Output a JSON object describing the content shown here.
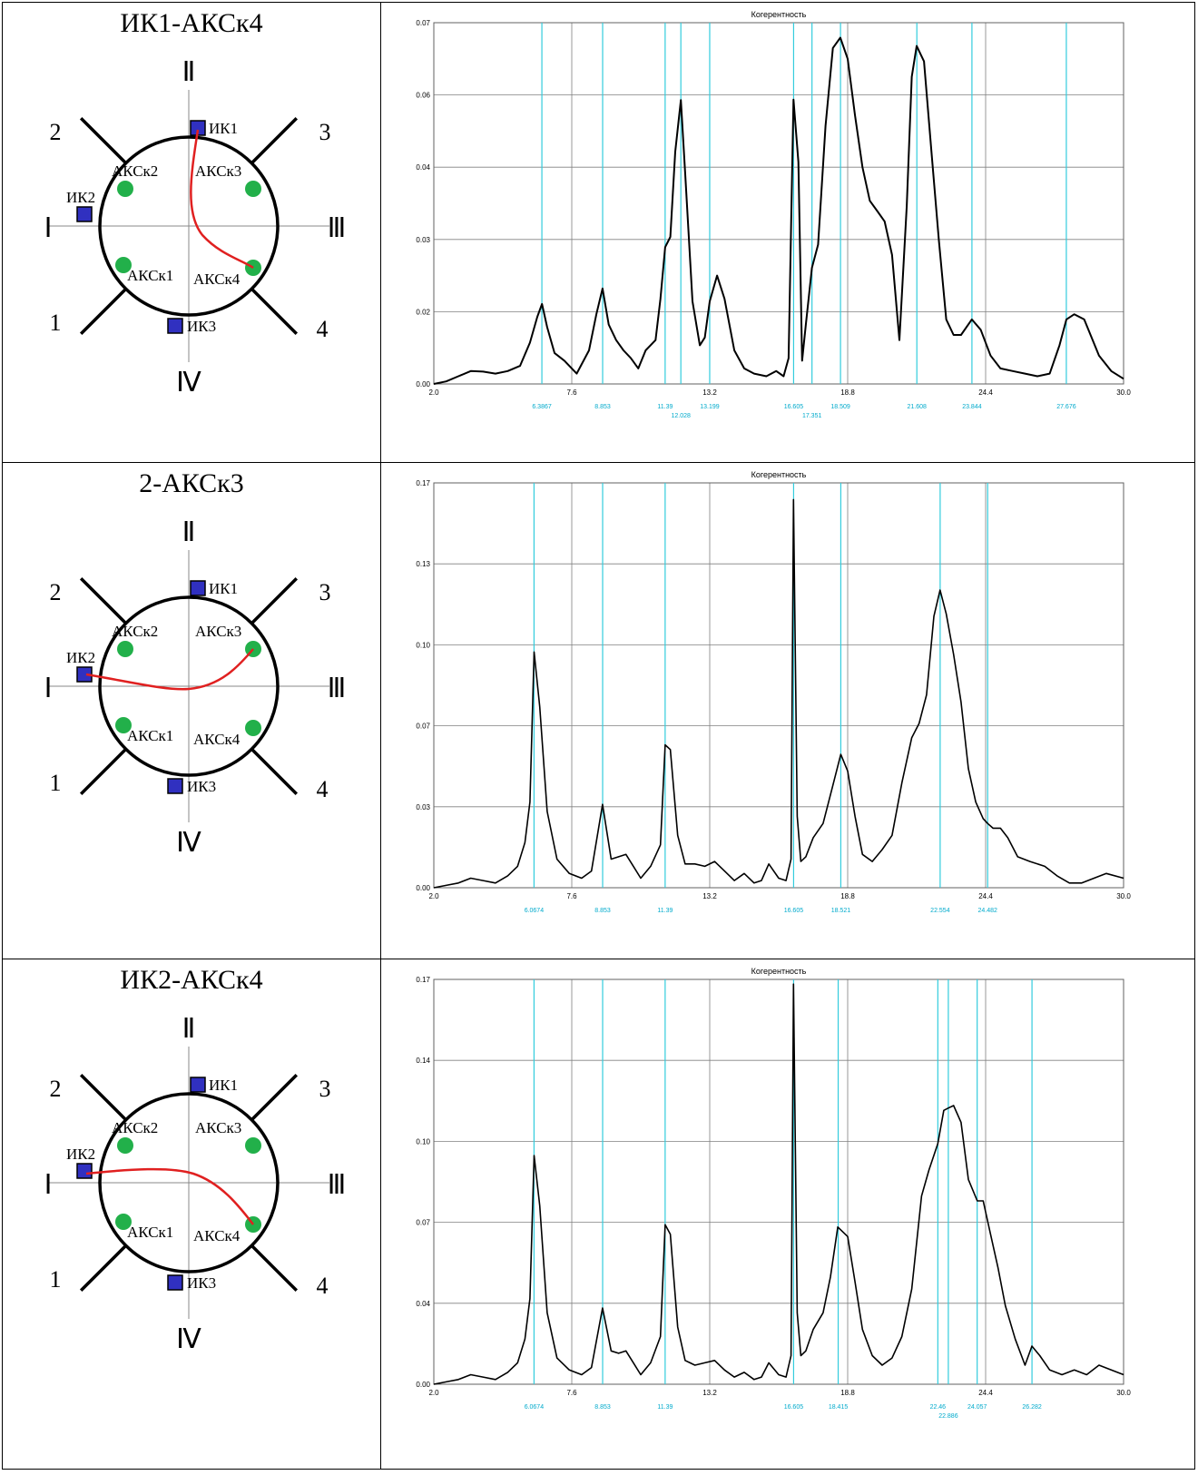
{
  "rows": [
    {
      "title": "ИК1-АКСк4",
      "scheme": {
        "path": "ik1-ak4",
        "labels": {
          "axis_top": "Ⅱ",
          "axis_bottom": "Ⅳ",
          "axis_left": "Ⅰ",
          "axis_right": "Ⅲ",
          "n1": "1",
          "n2": "2",
          "n3": "3",
          "n4": "4",
          "ik1": "ИК1",
          "ik2": "ИК2",
          "ik3": "ИК3",
          "a1": "АКСк1",
          "a2": "АКСк2",
          "a3": "АКСк3",
          "a4": "АКСк4"
        }
      }
    },
    {
      "title": "2-АКСк3",
      "scheme": {
        "path": "ik2-ak3",
        "labels": {
          "axis_top": "Ⅱ",
          "axis_bottom": "Ⅳ",
          "axis_left": "Ⅰ",
          "axis_right": "Ⅲ",
          "n1": "1",
          "n2": "2",
          "n3": "3",
          "n4": "4",
          "ik1": "ИК1",
          "ik2": "ИК2",
          "ik3": "ИК3",
          "a1": "АКСк1",
          "a2": "АКСк2",
          "a3": "АКСк3",
          "a4": "АКСк4"
        }
      }
    },
    {
      "title": "ИК2-АКСк4",
      "scheme": {
        "path": "ik2-ak4",
        "labels": {
          "axis_top": "Ⅱ",
          "axis_bottom": "Ⅳ",
          "axis_left": "Ⅰ",
          "axis_right": "Ⅲ",
          "n1": "1",
          "n2": "2",
          "n3": "3",
          "n4": "4",
          "ik1": "ИК1",
          "ik2": "ИК2",
          "ik3": "ИК3",
          "a1": "АКСк1",
          "a2": "АКСк2",
          "a3": "АКСк3",
          "a4": "АКСк4"
        }
      }
    }
  ],
  "colors": {
    "curve": "#000000",
    "marker_line": "#33ccdd",
    "marker_label": "#00aacc",
    "grid": "#808080",
    "path": "#e02020",
    "sensor": "#22b04a",
    "square": "#3030c0"
  },
  "chart_data": [
    {
      "type": "line",
      "title": "Когерентность",
      "x_ticks": [
        "2.0",
        "7.6",
        "13.2",
        "18.8",
        "24.4",
        "30.0"
      ],
      "y_ticks": [
        "0.00",
        "0.02",
        "0.03",
        "0.04",
        "0.06",
        "0.07"
      ],
      "xlim": [
        2.0,
        30.0
      ],
      "ylim": [
        0,
        0.07
      ],
      "markers": [
        "6.3867",
        "8.853",
        "11.39",
        "12.028",
        "13.199",
        "16.605",
        "17.351",
        "18.509",
        "21.608",
        "23.844",
        "27.676"
      ],
      "series": [
        {
          "x": [
            2.0,
            2.5,
            3.0,
            3.5,
            4.0,
            4.5,
            5.0,
            5.5,
            5.9,
            6.2,
            6.39,
            6.6,
            6.9,
            7.3,
            7.8,
            8.3,
            8.6,
            8.85,
            9.1,
            9.4,
            9.7,
            10.0,
            10.3,
            10.6,
            11.0,
            11.2,
            11.39,
            11.6,
            11.8,
            12.03,
            12.2,
            12.5,
            12.8,
            13.0,
            13.2,
            13.5,
            13.8,
            14.2,
            14.6,
            15.0,
            15.5,
            15.9,
            16.2,
            16.4,
            16.6,
            16.8,
            16.95,
            17.1,
            17.35,
            17.6,
            17.9,
            18.2,
            18.5,
            18.8,
            19.1,
            19.4,
            19.7,
            20.0,
            20.3,
            20.6,
            20.9,
            21.2,
            21.4,
            21.6,
            21.9,
            22.2,
            22.5,
            22.8,
            23.1,
            23.4,
            23.84,
            24.2,
            24.6,
            25.0,
            25.5,
            26.0,
            26.5,
            27.0,
            27.4,
            27.68,
            28.0,
            28.4,
            29.0,
            29.5,
            30.0
          ],
          "y": [
            0.0,
            0.0005,
            0.0015,
            0.0025,
            0.0024,
            0.002,
            0.0025,
            0.0035,
            0.008,
            0.013,
            0.0155,
            0.011,
            0.006,
            0.0045,
            0.002,
            0.0065,
            0.0135,
            0.0185,
            0.0115,
            0.0085,
            0.0065,
            0.005,
            0.003,
            0.0065,
            0.0085,
            0.0165,
            0.0265,
            0.0285,
            0.045,
            0.055,
            0.041,
            0.016,
            0.0075,
            0.009,
            0.016,
            0.021,
            0.0165,
            0.0065,
            0.003,
            0.002,
            0.0015,
            0.0025,
            0.0015,
            0.005,
            0.0551,
            0.043,
            0.0045,
            0.0115,
            0.0225,
            0.027,
            0.05,
            0.0651,
            0.0671,
            0.063,
            0.052,
            0.042,
            0.0355,
            0.0335,
            0.0315,
            0.025,
            0.0085,
            0.0345,
            0.0595,
            0.0655,
            0.0625,
            0.045,
            0.028,
            0.0125,
            0.0095,
            0.0095,
            0.0125,
            0.0105,
            0.0055,
            0.003,
            0.0025,
            0.002,
            0.0015,
            0.002,
            0.0075,
            0.0125,
            0.0135,
            0.0125,
            0.0055,
            0.0025,
            0.001
          ]
        }
      ]
    },
    {
      "type": "line",
      "title": "Когерентность",
      "x_ticks": [
        "2.0",
        "7.6",
        "13.2",
        "18.8",
        "24.4",
        "30.0"
      ],
      "y_ticks": [
        "0.00",
        "0.03",
        "0.07",
        "0.10",
        "0.13",
        "0.17"
      ],
      "xlim": [
        2.0,
        30.0
      ],
      "ylim": [
        0,
        0.17
      ],
      "markers": [
        "6.0674",
        "8.853",
        "11.39",
        "16.605",
        "18.521",
        "22.554",
        "24.482"
      ],
      "series": [
        {
          "x": [
            2.0,
            2.5,
            3.0,
            3.5,
            4.0,
            4.5,
            5.0,
            5.4,
            5.7,
            5.9,
            6.07,
            6.3,
            6.6,
            7.0,
            7.5,
            8.0,
            8.4,
            8.85,
            9.2,
            9.5,
            9.8,
            10.1,
            10.4,
            10.8,
            11.2,
            11.39,
            11.6,
            11.9,
            12.2,
            12.6,
            13.0,
            13.4,
            13.8,
            14.2,
            14.6,
            15.0,
            15.3,
            15.6,
            16.0,
            16.3,
            16.5,
            16.6,
            16.75,
            16.9,
            17.1,
            17.4,
            17.8,
            18.2,
            18.52,
            18.8,
            19.1,
            19.4,
            19.8,
            20.2,
            20.6,
            21.0,
            21.4,
            21.7,
            22.0,
            22.3,
            22.55,
            22.8,
            23.1,
            23.4,
            23.7,
            24.0,
            24.3,
            24.48,
            24.7,
            25.0,
            25.3,
            25.7,
            26.2,
            26.8,
            27.3,
            27.8,
            28.3,
            28.8,
            29.3,
            30.0
          ],
          "y": [
            0.0,
            0.001,
            0.002,
            0.004,
            0.003,
            0.002,
            0.005,
            0.009,
            0.019,
            0.036,
            0.099,
            0.076,
            0.032,
            0.012,
            0.006,
            0.004,
            0.007,
            0.035,
            0.012,
            0.013,
            0.014,
            0.009,
            0.004,
            0.009,
            0.018,
            0.06,
            0.058,
            0.022,
            0.01,
            0.01,
            0.009,
            0.011,
            0.007,
            0.003,
            0.006,
            0.002,
            0.003,
            0.01,
            0.004,
            0.003,
            0.012,
            0.163,
            0.03,
            0.011,
            0.013,
            0.021,
            0.027,
            0.043,
            0.056,
            0.049,
            0.03,
            0.014,
            0.011,
            0.016,
            0.022,
            0.044,
            0.063,
            0.069,
            0.081,
            0.114,
            0.125,
            0.115,
            0.098,
            0.078,
            0.05,
            0.036,
            0.029,
            0.027,
            0.025,
            0.025,
            0.021,
            0.013,
            0.011,
            0.009,
            0.005,
            0.002,
            0.002,
            0.004,
            0.006,
            0.004
          ]
        }
      ]
    },
    {
      "type": "line",
      "title": "Когерентность",
      "x_ticks": [
        "2.0",
        "7.6",
        "13.2",
        "18.8",
        "24.4",
        "30.0"
      ],
      "y_ticks": [
        "0.00",
        "0.04",
        "0.07",
        "0.10",
        "0.14",
        "0.17"
      ],
      "xlim": [
        2.0,
        30.0
      ],
      "ylim": [
        0,
        0.17
      ],
      "markers": [
        "6.0674",
        "8.853",
        "11.39",
        "16.605",
        "18.415",
        "22.46",
        "22.886",
        "24.057",
        "26.282"
      ],
      "series": [
        {
          "x": [
            2.0,
            2.5,
            3.0,
            3.5,
            4.0,
            4.5,
            5.0,
            5.4,
            5.7,
            5.9,
            6.07,
            6.3,
            6.6,
            7.0,
            7.5,
            8.0,
            8.4,
            8.85,
            9.2,
            9.5,
            9.8,
            10.1,
            10.4,
            10.8,
            11.2,
            11.39,
            11.6,
            11.9,
            12.2,
            12.6,
            13.0,
            13.4,
            13.8,
            14.2,
            14.6,
            15.0,
            15.3,
            15.6,
            16.0,
            16.3,
            16.5,
            16.6,
            16.75,
            16.9,
            17.1,
            17.4,
            17.8,
            18.1,
            18.4,
            18.8,
            19.1,
            19.4,
            19.8,
            20.2,
            20.6,
            21.0,
            21.4,
            21.8,
            22.1,
            22.46,
            22.7,
            22.89,
            23.1,
            23.4,
            23.7,
            24.06,
            24.3,
            24.6,
            24.9,
            25.2,
            25.6,
            26.0,
            26.28,
            26.6,
            27.0,
            27.5,
            28.0,
            28.5,
            29.0,
            29.5,
            30.0
          ],
          "y": [
            0.0,
            0.001,
            0.002,
            0.004,
            0.003,
            0.002,
            0.005,
            0.009,
            0.019,
            0.036,
            0.096,
            0.075,
            0.03,
            0.011,
            0.006,
            0.004,
            0.007,
            0.032,
            0.014,
            0.013,
            0.014,
            0.009,
            0.004,
            0.009,
            0.02,
            0.067,
            0.063,
            0.024,
            0.01,
            0.008,
            0.009,
            0.01,
            0.006,
            0.003,
            0.005,
            0.002,
            0.003,
            0.009,
            0.004,
            0.003,
            0.012,
            0.168,
            0.03,
            0.012,
            0.014,
            0.023,
            0.03,
            0.045,
            0.066,
            0.062,
            0.043,
            0.023,
            0.012,
            0.008,
            0.011,
            0.02,
            0.04,
            0.079,
            0.09,
            0.101,
            0.115,
            0.116,
            0.117,
            0.11,
            0.086,
            0.077,
            0.077,
            0.063,
            0.049,
            0.033,
            0.019,
            0.008,
            0.016,
            0.012,
            0.006,
            0.004,
            0.006,
            0.004,
            0.008,
            0.006,
            0.004
          ]
        }
      ]
    }
  ]
}
